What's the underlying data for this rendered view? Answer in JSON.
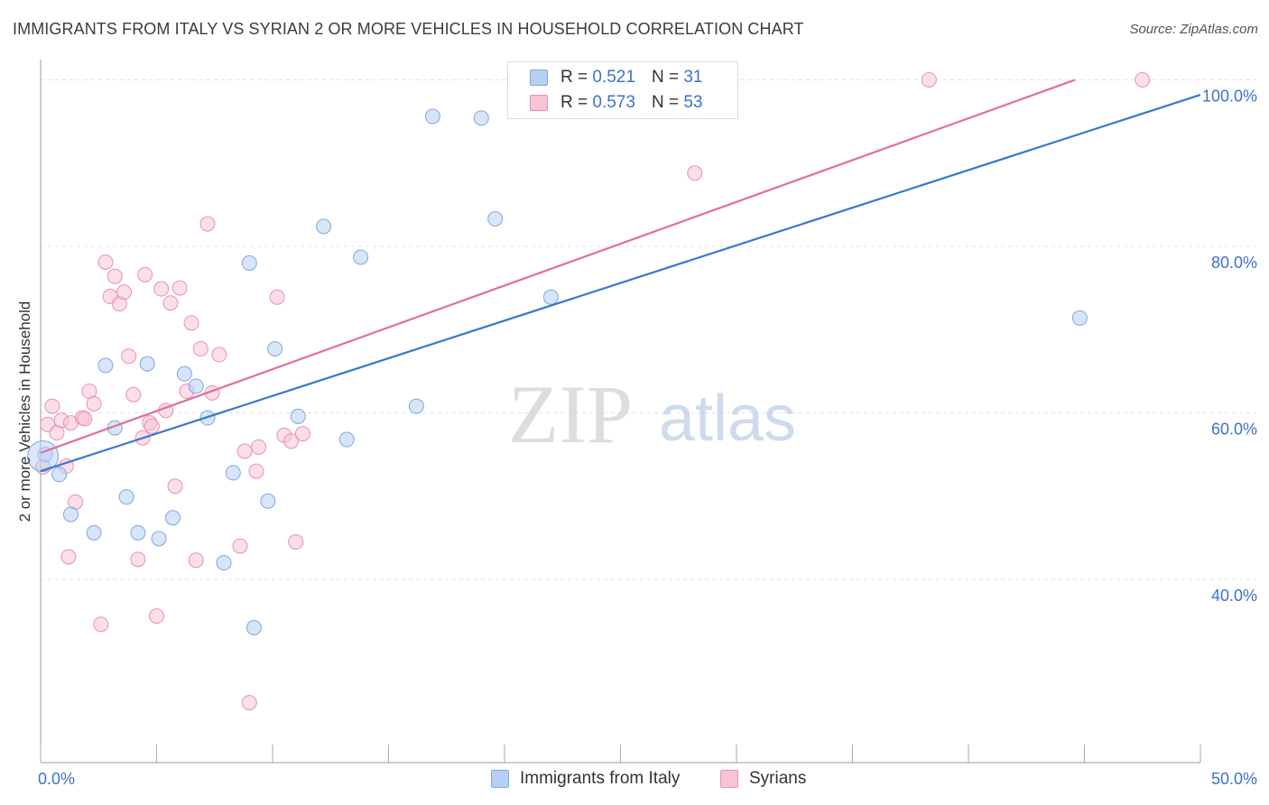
{
  "title": "IMMIGRANTS FROM ITALY VS SYRIAN 2 OR MORE VEHICLES IN HOUSEHOLD CORRELATION CHART",
  "source": "Source: ZipAtlas.com",
  "watermark": {
    "zip": "ZIP",
    "atlas": "atlas"
  },
  "colors": {
    "blue_fill": "#b6d0f2",
    "blue_stroke": "#7fa8e0",
    "blue_line": "#3a78cc",
    "pink_fill": "#f8c3d4",
    "pink_stroke": "#e892ae",
    "pink_line": "#e07098",
    "axis_text": "#3d72c8",
    "grid": "#e2e2e2"
  },
  "legend": {
    "rows": [
      {
        "r_label": "R =",
        "r_value": "0.521",
        "n_label": "N =",
        "n_value": "31"
      },
      {
        "r_label": "R =",
        "r_value": "0.573",
        "n_label": "N =",
        "n_value": "53"
      }
    ]
  },
  "chart_data": {
    "type": "scatter",
    "title": "IMMIGRANTS FROM ITALY VS SYRIAN 2 OR MORE VEHICLES IN HOUSEHOLD CORRELATION CHART",
    "xlabel": "",
    "ylabel": "2 or more Vehicles in Household",
    "xlim": [
      0,
      50
    ],
    "ylim": [
      18,
      102
    ],
    "x_tick_labels": [
      "0.0%",
      "50.0%"
    ],
    "y_ticks": [
      40,
      60,
      80,
      100
    ],
    "y_tick_labels": [
      "40.0%",
      "60.0%",
      "80.0%",
      "100.0%"
    ],
    "grid": true,
    "legend_position": "top-center",
    "series": [
      {
        "name": "Immigrants from Italy",
        "points": [
          [
            0.2,
            55.0
          ],
          [
            0.8,
            52.6
          ],
          [
            1.3,
            47.8
          ],
          [
            2.3,
            45.6
          ],
          [
            2.8,
            65.7
          ],
          [
            3.2,
            58.2
          ],
          [
            3.7,
            49.9
          ],
          [
            4.2,
            45.6
          ],
          [
            4.6,
            65.9
          ],
          [
            5.1,
            44.9
          ],
          [
            5.7,
            47.4
          ],
          [
            6.2,
            64.7
          ],
          [
            6.7,
            63.2
          ],
          [
            7.2,
            59.4
          ],
          [
            7.9,
            42.0
          ],
          [
            8.3,
            52.8
          ],
          [
            9.0,
            78.0
          ],
          [
            9.2,
            34.2
          ],
          [
            9.8,
            49.4
          ],
          [
            10.1,
            67.7
          ],
          [
            11.1,
            59.6
          ],
          [
            12.2,
            82.4
          ],
          [
            13.2,
            56.8
          ],
          [
            13.8,
            78.7
          ],
          [
            16.2,
            60.8
          ],
          [
            16.9,
            95.6
          ],
          [
            19.0,
            95.4
          ],
          [
            19.6,
            83.3
          ],
          [
            22.0,
            73.9
          ],
          [
            44.8,
            71.4
          ],
          [
            0.1,
            54.8
          ]
        ]
      },
      {
        "name": "Syrians",
        "points": [
          [
            0.3,
            58.6
          ],
          [
            0.5,
            60.8
          ],
          [
            0.7,
            57.6
          ],
          [
            0.9,
            59.1
          ],
          [
            1.1,
            53.6
          ],
          [
            1.3,
            58.8
          ],
          [
            1.5,
            49.3
          ],
          [
            1.8,
            59.4
          ],
          [
            1.9,
            59.3
          ],
          [
            1.2,
            42.7
          ],
          [
            2.1,
            62.6
          ],
          [
            2.3,
            61.1
          ],
          [
            2.6,
            34.6
          ],
          [
            2.8,
            78.1
          ],
          [
            3.0,
            74.0
          ],
          [
            3.2,
            76.4
          ],
          [
            3.4,
            73.1
          ],
          [
            3.6,
            74.5
          ],
          [
            3.8,
            66.8
          ],
          [
            4.0,
            62.2
          ],
          [
            4.2,
            42.4
          ],
          [
            4.4,
            57.0
          ],
          [
            4.5,
            76.6
          ],
          [
            4.7,
            58.8
          ],
          [
            4.8,
            58.4
          ],
          [
            5.0,
            35.6
          ],
          [
            5.2,
            74.9
          ],
          [
            5.4,
            60.3
          ],
          [
            5.6,
            73.2
          ],
          [
            5.8,
            51.2
          ],
          [
            6.0,
            75.0
          ],
          [
            6.3,
            62.6
          ],
          [
            6.5,
            70.8
          ],
          [
            6.7,
            42.3
          ],
          [
            6.9,
            67.7
          ],
          [
            7.2,
            82.7
          ],
          [
            7.4,
            62.4
          ],
          [
            7.7,
            67.0
          ],
          [
            8.6,
            44.0
          ],
          [
            8.8,
            55.4
          ],
          [
            9.0,
            25.2
          ],
          [
            9.3,
            53.0
          ],
          [
            9.4,
            55.9
          ],
          [
            10.2,
            73.9
          ],
          [
            10.5,
            57.3
          ],
          [
            10.8,
            56.6
          ],
          [
            11.0,
            44.5
          ],
          [
            11.3,
            57.5
          ],
          [
            27.9,
            100.0
          ],
          [
            28.2,
            88.8
          ],
          [
            38.3,
            100.0
          ],
          [
            47.5,
            100.0
          ],
          [
            0.1,
            53.5
          ]
        ]
      }
    ],
    "trend_lines": [
      {
        "series": "Immigrants from Italy",
        "x": [
          0,
          50
        ],
        "y": [
          53.0,
          98.2
        ]
      },
      {
        "series": "Syrians",
        "x": [
          0,
          44.6
        ],
        "y": [
          55.2,
          100.0
        ]
      }
    ]
  }
}
